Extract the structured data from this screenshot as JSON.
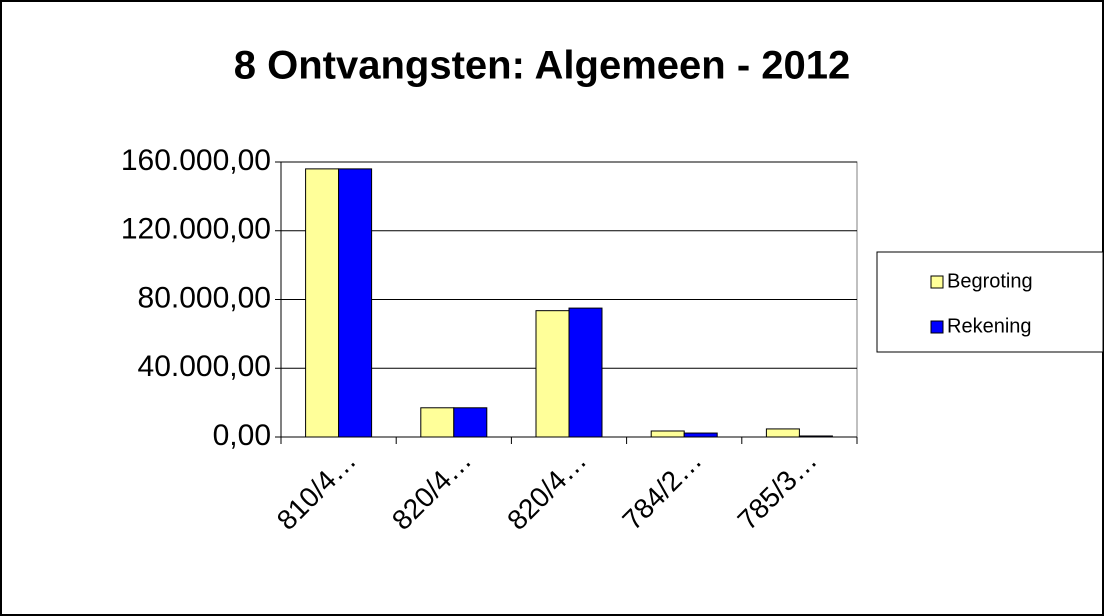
{
  "chart_data": {
    "type": "bar",
    "title": "8 Ontvangsten: Algemeen - 2012",
    "categories": [
      "810/4…",
      "820/4…",
      "820/4…",
      "784/2…",
      "785/3…"
    ],
    "series": [
      {
        "name": "Begroting",
        "color": "#ffff99",
        "values": [
          156000,
          17000,
          73500,
          3500,
          4700
        ]
      },
      {
        "name": "Rekening",
        "color": "#0000ff",
        "values": [
          156000,
          17000,
          75000,
          2300,
          600
        ]
      }
    ],
    "ylim": [
      0,
      160000
    ],
    "yticks": [
      {
        "value": 0,
        "label": "0,00"
      },
      {
        "value": 40000,
        "label": "40.000,00"
      },
      {
        "value": 80000,
        "label": "80.000,00"
      },
      {
        "value": 120000,
        "label": "120.000,00"
      },
      {
        "value": 160000,
        "label": "160.000,00"
      }
    ],
    "grid": true,
    "legend": "right"
  }
}
